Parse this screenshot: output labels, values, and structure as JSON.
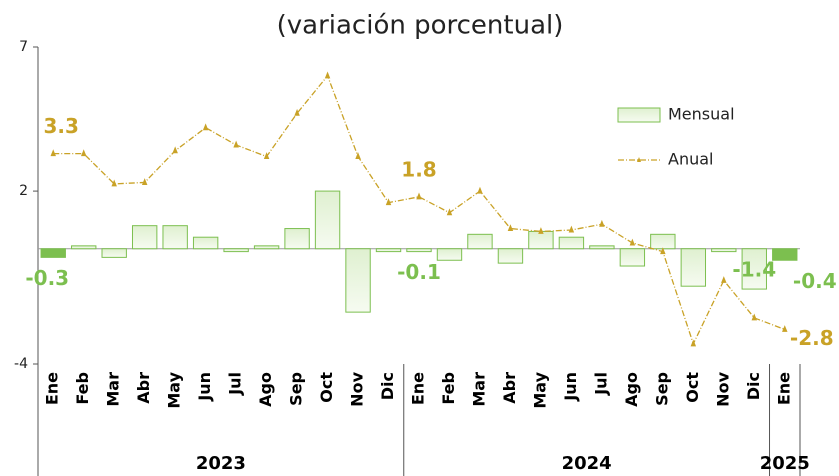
{
  "chart_data": {
    "type": "bar-line",
    "title": "(variación porcentual)",
    "categories": [
      "Ene",
      "Feb",
      "Mar",
      "Abr",
      "May",
      "Jun",
      "Jul",
      "Ago",
      "Sep",
      "Oct",
      "Nov",
      "Dic",
      "Ene",
      "Feb",
      "Mar",
      "Abr",
      "May",
      "Jun",
      "Jul",
      "Ago",
      "Sep",
      "Oct",
      "Nov",
      "Dic",
      "Ene"
    ],
    "groups": [
      {
        "label": "2023",
        "count": 12
      },
      {
        "label": "2024",
        "count": 12
      },
      {
        "label": "2025",
        "count": 1
      }
    ],
    "series": [
      {
        "name": "Mensual",
        "type": "bar",
        "color": "#7cbf4f",
        "values": [
          -0.3,
          0.1,
          -0.3,
          0.8,
          0.8,
          0.4,
          -0.1,
          0.1,
          0.7,
          2.0,
          -2.2,
          -0.1,
          -0.1,
          -0.4,
          0.5,
          -0.5,
          0.6,
          0.4,
          0.1,
          -0.6,
          0.5,
          -1.3,
          -0.1,
          -1.4,
          -0.4
        ],
        "labels_at": [
          0,
          12,
          23,
          24
        ]
      },
      {
        "name": "Anual",
        "type": "line",
        "color": "#c9a227",
        "values": [
          3.3,
          3.3,
          2.25,
          2.3,
          3.4,
          4.2,
          3.6,
          3.2,
          4.7,
          6.0,
          3.2,
          1.6,
          1.8,
          1.25,
          2.0,
          0.7,
          0.6,
          0.65,
          0.85,
          0.2,
          -0.1,
          -3.3,
          -1.1,
          -2.4,
          -2.8
        ],
        "labels_at": [
          0,
          12,
          24
        ]
      }
    ],
    "ylim": [
      -4,
      7
    ],
    "yticks": [
      -4,
      2,
      7
    ],
    "grid": false
  }
}
